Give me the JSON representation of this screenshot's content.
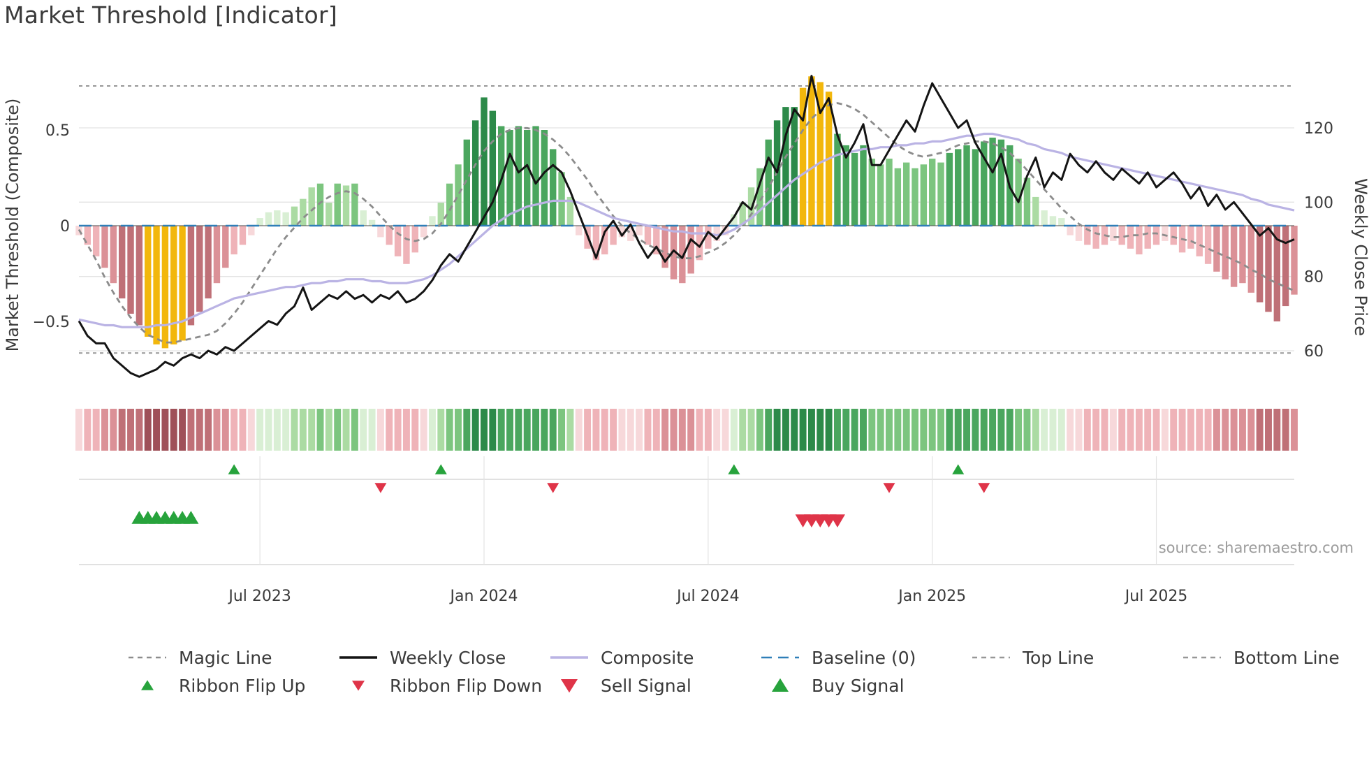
{
  "title": "Market Threshold [Indicator]",
  "source": "source: sharemaestro.com",
  "colors": {
    "greens": [
      "#d9efd4",
      "#abdba3",
      "#7cc57f",
      "#4aa65e",
      "#2c8a49"
    ],
    "reds": [
      "#f7d8da",
      "#efb3b8",
      "#db9197",
      "#bf7077",
      "#9f5058"
    ],
    "highlight": "#f2b70c",
    "magic_line": "#8c8c8c",
    "weekly_close": "#141414",
    "composite": "#bab3e4",
    "baseline": "#2f7fb8",
    "top_bottom": "#979797",
    "signal_green": "#27a33c",
    "signal_red": "#df3448",
    "grid": "#e3e3e3",
    "panel_line": "#cfcfcf",
    "zero_line": "#4a4a4a"
  },
  "chart_data": {
    "type": "bar+line",
    "x_unit": "week",
    "n_points": 142,
    "x_tick_labels": [
      "Jul 2023",
      "Jan 2024",
      "Jul 2024",
      "Jan 2025",
      "Jul 2025"
    ],
    "x_tick_indices": [
      21,
      47,
      73,
      99,
      125
    ],
    "left_axis": {
      "label": "Market Threshold (Composite)",
      "ticks": [
        0.5,
        0,
        -0.5
      ],
      "tick_labels": [
        "0.5",
        "0",
        "−0.5"
      ],
      "range": [
        -0.87,
        0.87
      ]
    },
    "right_axis": {
      "label": "Weekly Close Price",
      "ticks": [
        120,
        100,
        80,
        60
      ],
      "tick_labels": [
        "120",
        "100",
        "80",
        "60"
      ],
      "range": [
        52,
        140
      ]
    },
    "baseline": 0,
    "top_line": 0.73,
    "bottom_line": -0.665,
    "series": [
      {
        "name": "Threshold",
        "type": "bar",
        "axis": "left",
        "highlight_indices": [
          8,
          9,
          10,
          11,
          12,
          84,
          85,
          86,
          87
        ],
        "values": [
          -0.05,
          -0.1,
          -0.16,
          -0.22,
          -0.3,
          -0.38,
          -0.46,
          -0.52,
          -0.58,
          -0.62,
          -0.64,
          -0.62,
          -0.6,
          -0.52,
          -0.45,
          -0.38,
          -0.3,
          -0.22,
          -0.15,
          -0.1,
          -0.05,
          0.04,
          0.07,
          0.08,
          0.07,
          0.1,
          0.14,
          0.2,
          0.22,
          0.12,
          0.22,
          0.21,
          0.22,
          0.08,
          0.03,
          -0.06,
          -0.1,
          -0.16,
          -0.2,
          -0.14,
          -0.06,
          0.05,
          0.12,
          0.22,
          0.32,
          0.45,
          0.55,
          0.67,
          0.6,
          0.52,
          0.5,
          0.52,
          0.5,
          0.52,
          0.5,
          0.4,
          0.28,
          0.15,
          -0.05,
          -0.12,
          -0.18,
          -0.15,
          -0.1,
          -0.06,
          -0.08,
          -0.05,
          -0.1,
          -0.15,
          -0.22,
          -0.28,
          -0.3,
          -0.25,
          -0.18,
          -0.12,
          -0.08,
          -0.05,
          0.06,
          0.12,
          0.2,
          0.3,
          0.45,
          0.55,
          0.62,
          0.62,
          0.72,
          0.78,
          0.75,
          0.7,
          0.48,
          0.42,
          0.38,
          0.42,
          0.35,
          0.32,
          0.35,
          0.3,
          0.33,
          0.3,
          0.32,
          0.35,
          0.33,
          0.38,
          0.4,
          0.42,
          0.4,
          0.44,
          0.46,
          0.45,
          0.42,
          0.35,
          0.25,
          0.15,
          0.08,
          0.05,
          0.04,
          -0.05,
          -0.08,
          -0.1,
          -0.12,
          -0.1,
          -0.08,
          -0.1,
          -0.12,
          -0.15,
          -0.12,
          -0.1,
          -0.08,
          -0.1,
          -0.14,
          -0.12,
          -0.16,
          -0.2,
          -0.24,
          -0.28,
          -0.32,
          -0.3,
          -0.35,
          -0.4,
          -0.45,
          -0.5,
          -0.42,
          -0.36
        ]
      },
      {
        "name": "Magic Line",
        "type": "line",
        "style": "dashed",
        "axis": "left",
        "values": [
          -0.02,
          -0.1,
          -0.18,
          -0.27,
          -0.35,
          -0.42,
          -0.48,
          -0.53,
          -0.57,
          -0.59,
          -0.61,
          -0.61,
          -0.6,
          -0.59,
          -0.58,
          -0.57,
          -0.55,
          -0.51,
          -0.46,
          -0.4,
          -0.33,
          -0.26,
          -0.19,
          -0.12,
          -0.06,
          -0.01,
          0.04,
          0.08,
          0.12,
          0.15,
          0.17,
          0.18,
          0.17,
          0.14,
          0.1,
          0.05,
          0.0,
          -0.04,
          -0.07,
          -0.08,
          -0.07,
          -0.04,
          0.01,
          0.08,
          0.16,
          0.24,
          0.32,
          0.39,
          0.44,
          0.48,
          0.5,
          0.51,
          0.51,
          0.5,
          0.48,
          0.45,
          0.41,
          0.36,
          0.3,
          0.24,
          0.17,
          0.11,
          0.05,
          0.0,
          -0.04,
          -0.07,
          -0.1,
          -0.12,
          -0.14,
          -0.16,
          -0.17,
          -0.17,
          -0.16,
          -0.14,
          -0.12,
          -0.09,
          -0.05,
          0.0,
          0.06,
          0.13,
          0.2,
          0.28,
          0.36,
          0.43,
          0.5,
          0.56,
          0.6,
          0.63,
          0.64,
          0.63,
          0.61,
          0.58,
          0.54,
          0.5,
          0.46,
          0.42,
          0.39,
          0.37,
          0.36,
          0.37,
          0.38,
          0.4,
          0.42,
          0.43,
          0.44,
          0.44,
          0.43,
          0.41,
          0.38,
          0.34,
          0.29,
          0.24,
          0.19,
          0.14,
          0.09,
          0.05,
          0.01,
          -0.02,
          -0.04,
          -0.05,
          -0.06,
          -0.06,
          -0.05,
          -0.05,
          -0.04,
          -0.04,
          -0.05,
          -0.06,
          -0.07,
          -0.08,
          -0.1,
          -0.12,
          -0.14,
          -0.16,
          -0.18,
          -0.2,
          -0.23,
          -0.25,
          -0.28,
          -0.3,
          -0.32,
          -0.34
        ]
      },
      {
        "name": "Composite",
        "type": "line",
        "style": "solid",
        "axis": "left",
        "values": [
          -0.49,
          -0.5,
          -0.51,
          -0.52,
          -0.52,
          -0.53,
          -0.53,
          -0.53,
          -0.53,
          -0.52,
          -0.52,
          -0.51,
          -0.5,
          -0.48,
          -0.46,
          -0.44,
          -0.42,
          -0.4,
          -0.38,
          -0.37,
          -0.36,
          -0.35,
          -0.34,
          -0.33,
          -0.32,
          -0.32,
          -0.31,
          -0.3,
          -0.3,
          -0.29,
          -0.29,
          -0.28,
          -0.28,
          -0.28,
          -0.29,
          -0.29,
          -0.3,
          -0.3,
          -0.3,
          -0.29,
          -0.28,
          -0.26,
          -0.23,
          -0.2,
          -0.16,
          -0.12,
          -0.08,
          -0.04,
          0.0,
          0.03,
          0.06,
          0.08,
          0.1,
          0.11,
          0.12,
          0.13,
          0.13,
          0.13,
          0.12,
          0.1,
          0.08,
          0.06,
          0.04,
          0.03,
          0.02,
          0.01,
          0.0,
          -0.01,
          -0.02,
          -0.03,
          -0.03,
          -0.04,
          -0.04,
          -0.04,
          -0.05,
          -0.04,
          -0.02,
          0.01,
          0.04,
          0.08,
          0.12,
          0.16,
          0.2,
          0.24,
          0.27,
          0.3,
          0.33,
          0.35,
          0.37,
          0.38,
          0.39,
          0.4,
          0.4,
          0.41,
          0.41,
          0.42,
          0.42,
          0.43,
          0.43,
          0.44,
          0.44,
          0.45,
          0.46,
          0.47,
          0.47,
          0.48,
          0.48,
          0.47,
          0.46,
          0.45,
          0.43,
          0.42,
          0.4,
          0.39,
          0.38,
          0.36,
          0.35,
          0.34,
          0.33,
          0.32,
          0.31,
          0.3,
          0.29,
          0.28,
          0.27,
          0.26,
          0.25,
          0.24,
          0.23,
          0.22,
          0.21,
          0.2,
          0.19,
          0.18,
          0.17,
          0.16,
          0.14,
          0.13,
          0.11,
          0.1,
          0.09,
          0.08
        ]
      },
      {
        "name": "Weekly Close",
        "type": "line",
        "style": "solid",
        "axis": "right",
        "values": [
          68,
          64,
          62,
          62,
          58,
          56,
          54,
          53,
          54,
          55,
          57,
          56,
          58,
          59,
          58,
          60,
          59,
          61,
          60,
          62,
          64,
          66,
          68,
          67,
          70,
          72,
          77,
          71,
          73,
          75,
          74,
          76,
          74,
          75,
          73,
          75,
          74,
          76,
          73,
          74,
          76,
          79,
          83,
          86,
          84,
          88,
          92,
          96,
          100,
          106,
          113,
          108,
          110,
          105,
          108,
          110,
          108,
          103,
          97,
          91,
          85,
          92,
          95,
          91,
          94,
          89,
          85,
          88,
          84,
          87,
          85,
          90,
          88,
          92,
          90,
          93,
          96,
          100,
          98,
          105,
          112,
          108,
          118,
          125,
          122,
          134,
          124,
          128,
          118,
          112,
          116,
          121,
          110,
          110,
          114,
          118,
          122,
          119,
          126,
          132,
          128,
          124,
          120,
          122,
          116,
          112,
          108,
          113,
          104,
          100,
          107,
          112,
          104,
          108,
          106,
          113,
          110,
          108,
          111,
          108,
          106,
          109,
          107,
          105,
          108,
          104,
          106,
          108,
          105,
          101,
          104,
          99,
          102,
          98,
          100,
          97,
          94,
          91,
          93,
          90,
          89,
          90
        ]
      }
    ],
    "ribbon": {
      "derived_from": "Threshold"
    },
    "signals": {
      "ribbon_flip_up_indices": [
        18,
        42,
        76,
        102
      ],
      "ribbon_flip_down_indices": [
        35,
        55,
        94,
        105
      ],
      "buy_signal_indices": [
        7,
        8,
        9,
        10,
        11,
        12,
        13
      ],
      "sell_signal_indices": [
        84,
        85,
        86,
        87,
        88
      ]
    }
  },
  "legend": {
    "rows": [
      [
        {
          "label": "Magic Line",
          "marker": "dash",
          "color": "magic_line"
        },
        {
          "label": "Weekly Close",
          "marker": "line",
          "color": "weekly_close"
        },
        {
          "label": "Composite",
          "marker": "line",
          "color": "composite"
        },
        {
          "label": "Baseline (0)",
          "marker": "longdash",
          "color": "baseline"
        },
        {
          "label": "Top Line",
          "marker": "dash",
          "color": "top_bottom"
        },
        {
          "label": "Bottom Line",
          "marker": "dash",
          "color": "top_bottom"
        }
      ],
      [
        {
          "label": "Ribbon Flip Up",
          "marker": "tri-up-small",
          "color": "signal_green"
        },
        {
          "label": "Ribbon Flip Down",
          "marker": "tri-down-small",
          "color": "signal_red"
        },
        {
          "label": "Sell Signal",
          "marker": "tri-down-big",
          "color": "signal_red"
        },
        {
          "label": "Buy Signal",
          "marker": "tri-up-big",
          "color": "signal_green"
        }
      ]
    ]
  }
}
